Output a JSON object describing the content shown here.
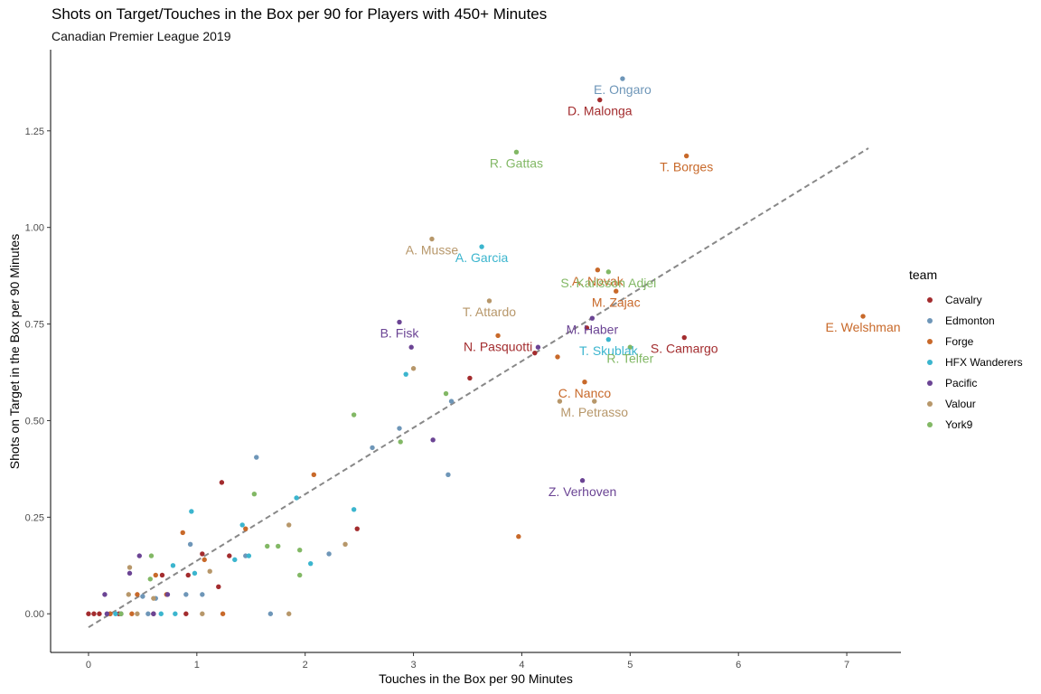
{
  "chart_data": {
    "type": "scatter",
    "title": "Shots on Target/Touches in the Box per 90 for Players with 450+ Minutes",
    "subtitle": "Canadian Premier League 2019",
    "xlabel": "Touches in the Box per 90 Minutes",
    "ylabel": "Shots on Target in the Box per 90 Minutes",
    "xlim": [
      -0.35,
      7.5
    ],
    "ylim": [
      -0.1,
      1.46
    ],
    "x_ticks": [
      "0",
      "1",
      "2",
      "3",
      "4",
      "5",
      "6",
      "7"
    ],
    "y_ticks": [
      "0.00",
      "0.25",
      "0.50",
      "0.75",
      "1.00",
      "1.25"
    ],
    "grid": false,
    "legend_title": "team",
    "legend_position": "right",
    "colors": {
      "Cavalry": "#A32C2E",
      "Edmonton": "#6E96B8",
      "Forge": "#C8692A",
      "HFX Wanderers": "#3BB5CE",
      "Pacific": "#6B4494",
      "Valour": "#B7976A",
      "York9": "#82B865"
    },
    "trend_line": {
      "x": [
        0,
        7.2
      ],
      "y": [
        -0.035,
        1.205
      ],
      "style": "dashed",
      "color": "#888888"
    },
    "series": [
      {
        "name": "Cavalry",
        "points": [
          [
            4.72,
            1.33
          ],
          [
            5.5,
            0.715
          ],
          [
            4.6,
            0.74
          ],
          [
            4.12,
            0.675
          ],
          [
            3.52,
            0.61
          ],
          [
            1.23,
            0.34
          ],
          [
            2.48,
            0.22
          ],
          [
            1.3,
            0.15
          ],
          [
            1.2,
            0.07
          ],
          [
            1.05,
            0.155
          ],
          [
            0.68,
            0.1
          ],
          [
            0.92,
            0.1
          ],
          [
            0,
            0
          ],
          [
            0.05,
            0
          ],
          [
            0.1,
            0
          ],
          [
            0.2,
            0
          ],
          [
            0.28,
            0
          ],
          [
            0.6,
            0
          ],
          [
            0.9,
            0
          ]
        ]
      },
      {
        "name": "Edmonton",
        "points": [
          [
            4.93,
            1.385
          ],
          [
            3.35,
            0.55
          ],
          [
            2.87,
            0.48
          ],
          [
            2.62,
            0.43
          ],
          [
            1.55,
            0.405
          ],
          [
            3.32,
            0.36
          ],
          [
            2.22,
            0.155
          ],
          [
            0.94,
            0.18
          ],
          [
            1.45,
            0.15
          ],
          [
            1.05,
            0.05
          ],
          [
            0.9,
            0.05
          ],
          [
            0.5,
            0.045
          ],
          [
            0.3,
            0
          ],
          [
            0.55,
            0
          ],
          [
            1.68,
            0
          ],
          [
            0.62,
            0.04
          ]
        ]
      },
      {
        "name": "Forge",
        "points": [
          [
            5.52,
            1.185
          ],
          [
            4.7,
            0.89
          ],
          [
            4.87,
            0.835
          ],
          [
            7.15,
            0.77
          ],
          [
            3.78,
            0.72
          ],
          [
            4.33,
            0.665
          ],
          [
            4.58,
            0.6
          ],
          [
            2.08,
            0.36
          ],
          [
            3.97,
            0.2
          ],
          [
            1.45,
            0.22
          ],
          [
            0.87,
            0.21
          ],
          [
            1.07,
            0.14
          ],
          [
            0.62,
            0.1
          ],
          [
            0.45,
            0.05
          ],
          [
            0.72,
            0.05
          ],
          [
            0.4,
            0
          ],
          [
            1.24,
            0
          ],
          [
            0.2,
            0
          ]
        ]
      },
      {
        "name": "HFX Wanderers",
        "points": [
          [
            3.63,
            0.95
          ],
          [
            4.8,
            0.71
          ],
          [
            2.93,
            0.62
          ],
          [
            1.92,
            0.3
          ],
          [
            2.45,
            0.27
          ],
          [
            0.95,
            0.265
          ],
          [
            1.42,
            0.23
          ],
          [
            1.48,
            0.15
          ],
          [
            1.35,
            0.14
          ],
          [
            0.78,
            0.125
          ],
          [
            0.98,
            0.105
          ],
          [
            2.05,
            0.13
          ],
          [
            0.67,
            0
          ],
          [
            0.8,
            0
          ],
          [
            0.25,
            0
          ]
        ]
      },
      {
        "name": "Pacific",
        "points": [
          [
            4.65,
            0.765
          ],
          [
            2.87,
            0.755
          ],
          [
            2.98,
            0.69
          ],
          [
            4.15,
            0.69
          ],
          [
            3.18,
            0.45
          ],
          [
            4.56,
            0.345
          ],
          [
            0.47,
            0.15
          ],
          [
            0.38,
            0.105
          ],
          [
            0.73,
            0.05
          ],
          [
            0.15,
            0.05
          ],
          [
            0.17,
            0
          ],
          [
            0.6,
            0
          ],
          [
            0.3,
            0
          ]
        ]
      },
      {
        "name": "Valour",
        "points": [
          [
            3.17,
            0.97
          ],
          [
            3.7,
            0.81
          ],
          [
            4.67,
            0.55
          ],
          [
            4.35,
            0.55
          ],
          [
            3,
            0.635
          ],
          [
            1.85,
            0.23
          ],
          [
            2.37,
            0.18
          ],
          [
            1.12,
            0.11
          ],
          [
            0.38,
            0.12
          ],
          [
            0.37,
            0.05
          ],
          [
            1.85,
            0
          ],
          [
            1.05,
            0
          ],
          [
            0.45,
            0
          ],
          [
            0.6,
            0.04
          ]
        ]
      },
      {
        "name": "York9",
        "points": [
          [
            3.95,
            1.195
          ],
          [
            4.8,
            0.885
          ],
          [
            5,
            0.69
          ],
          [
            3.3,
            0.57
          ],
          [
            2.45,
            0.515
          ],
          [
            2.88,
            0.445
          ],
          [
            1.53,
            0.31
          ],
          [
            1.65,
            0.175
          ],
          [
            1.75,
            0.175
          ],
          [
            1.95,
            0.165
          ],
          [
            1.95,
            0.1
          ],
          [
            0.57,
            0.09
          ],
          [
            0.58,
            0.15
          ],
          [
            0.3,
            0
          ]
        ]
      }
    ],
    "annotations": [
      {
        "text": "E. Ongaro",
        "x": 4.93,
        "y": 1.38,
        "team": "Edmonton"
      },
      {
        "text": "D. Malonga",
        "x": 4.72,
        "y": 1.325,
        "team": "Cavalry"
      },
      {
        "text": "R. Gattas",
        "x": 3.95,
        "y": 1.19,
        "team": "York9"
      },
      {
        "text": "T. Borges",
        "x": 5.52,
        "y": 1.18,
        "team": "Forge"
      },
      {
        "text": "A. Musse",
        "x": 3.17,
        "y": 0.965,
        "team": "Valour"
      },
      {
        "text": "A. Garcia",
        "x": 3.63,
        "y": 0.945,
        "team": "HFX Wanderers"
      },
      {
        "text": "A. Novak",
        "x": 4.7,
        "y": 0.885,
        "team": "Forge"
      },
      {
        "text": "S. Karlsson Adjei",
        "x": 4.8,
        "y": 0.88,
        "team": "York9"
      },
      {
        "text": "M. Zajac",
        "x": 4.87,
        "y": 0.83,
        "team": "Forge"
      },
      {
        "text": "T. Attardo",
        "x": 3.7,
        "y": 0.805,
        "team": "Valour"
      },
      {
        "text": "M. Haber",
        "x": 4.65,
        "y": 0.76,
        "team": "Pacific"
      },
      {
        "text": "E. Welshman",
        "x": 7.15,
        "y": 0.765,
        "team": "Forge"
      },
      {
        "text": "B. Fisk",
        "x": 2.87,
        "y": 0.75,
        "team": "Pacific"
      },
      {
        "text": "S. Camargo",
        "x": 5.5,
        "y": 0.71,
        "team": "Cavalry"
      },
      {
        "text": "T. Skublak",
        "x": 4.8,
        "y": 0.705,
        "team": "HFX Wanderers"
      },
      {
        "text": "N. Pasquotti",
        "x": 3.78,
        "y": 0.715,
        "team": "Cavalry"
      },
      {
        "text": "R. Telfer",
        "x": 5,
        "y": 0.685,
        "team": "York9"
      },
      {
        "text": "C. Nanco",
        "x": 4.58,
        "y": 0.595,
        "team": "Forge"
      },
      {
        "text": "M. Petrasso",
        "x": 4.67,
        "y": 0.545,
        "team": "Valour"
      },
      {
        "text": "Z. Verhoven",
        "x": 4.56,
        "y": 0.34,
        "team": "Pacific"
      }
    ]
  }
}
